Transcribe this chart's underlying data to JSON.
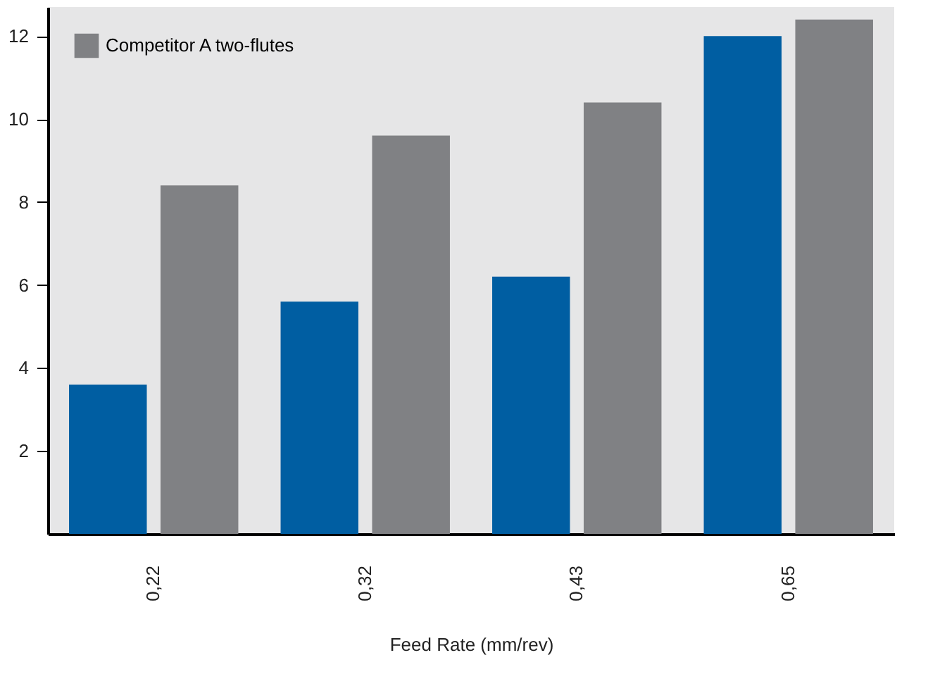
{
  "chart_data": {
    "type": "bar",
    "xlabel": "Feed Rate (mm/rev)",
    "categories": [
      "0,22",
      "0,32",
      "0,43",
      "0,65"
    ],
    "series": [
      {
        "color": "#005ea2",
        "values": [
          3.6,
          5.6,
          6.2,
          12.0
        ]
      },
      {
        "name": "Competitor A two-flutes",
        "color": "#808184",
        "values": [
          8.4,
          9.6,
          10.4,
          12.4
        ]
      }
    ],
    "ylim": [
      0,
      12.7
    ],
    "yticks": [
      2,
      4,
      6,
      8,
      10,
      12
    ],
    "grid": false,
    "legend": "top left"
  }
}
